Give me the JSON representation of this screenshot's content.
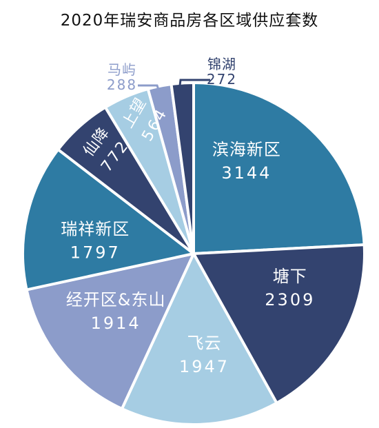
{
  "chart_data": {
    "type": "pie",
    "title": "2020年瑞安商品房各区域供应套数",
    "categories": [
      "滨海新区",
      "塘下",
      "飞云",
      "经开区&东山",
      "瑞祥新区",
      "仙降",
      "上望",
      "马屿",
      "锦湖"
    ],
    "values": [
      3144,
      2309,
      1947,
      1914,
      1797,
      772,
      564,
      288,
      272
    ],
    "colors": [
      "#2e7ba3",
      "#33436f",
      "#a6cde3",
      "#8c9cca",
      "#2e7ba3",
      "#33436f",
      "#a6cde3",
      "#8c9cca",
      "#33436f"
    ],
    "label_colors": [
      "#ffffff",
      "#ffffff",
      "#ffffff",
      "#ffffff",
      "#ffffff",
      "#ffffff",
      "#ffffff",
      "#8c9cca",
      "#33436f"
    ]
  }
}
